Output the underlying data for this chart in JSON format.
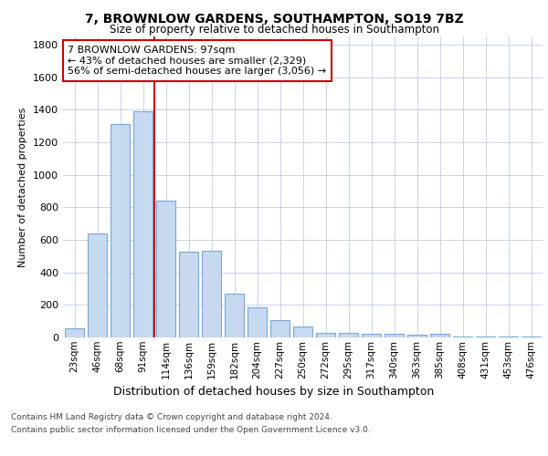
{
  "title": "7, BROWNLOW GARDENS, SOUTHAMPTON, SO19 7BZ",
  "subtitle": "Size of property relative to detached houses in Southampton",
  "xlabel": "Distribution of detached houses by size in Southampton",
  "ylabel": "Number of detached properties",
  "bar_color": "#c6d9f0",
  "bar_edgecolor": "#7aa6d4",
  "categories": [
    "23sqm",
    "46sqm",
    "68sqm",
    "91sqm",
    "114sqm",
    "136sqm",
    "159sqm",
    "182sqm",
    "204sqm",
    "227sqm",
    "250sqm",
    "272sqm",
    "295sqm",
    "317sqm",
    "340sqm",
    "363sqm",
    "385sqm",
    "408sqm",
    "431sqm",
    "453sqm",
    "476sqm"
  ],
  "values": [
    55,
    640,
    1310,
    1390,
    840,
    525,
    530,
    270,
    185,
    105,
    65,
    30,
    30,
    25,
    20,
    15,
    20,
    5,
    5,
    5,
    5
  ],
  "ylim": [
    0,
    1850
  ],
  "yticks": [
    0,
    200,
    400,
    600,
    800,
    1000,
    1200,
    1400,
    1600,
    1800
  ],
  "property_line_x": 3.5,
  "annotation_title": "7 BROWNLOW GARDENS: 97sqm",
  "annotation_line1": "← 43% of detached houses are smaller (2,329)",
  "annotation_line2": "56% of semi-detached houses are larger (3,056) →",
  "annotation_box_color": "#ffffff",
  "annotation_box_edgecolor": "#cc0000",
  "vline_color": "#cc0000",
  "footer1": "Contains HM Land Registry data © Crown copyright and database right 2024.",
  "footer2": "Contains public sector information licensed under the Open Government Licence v3.0.",
  "background_color": "#ffffff",
  "grid_color": "#c8d4e8"
}
